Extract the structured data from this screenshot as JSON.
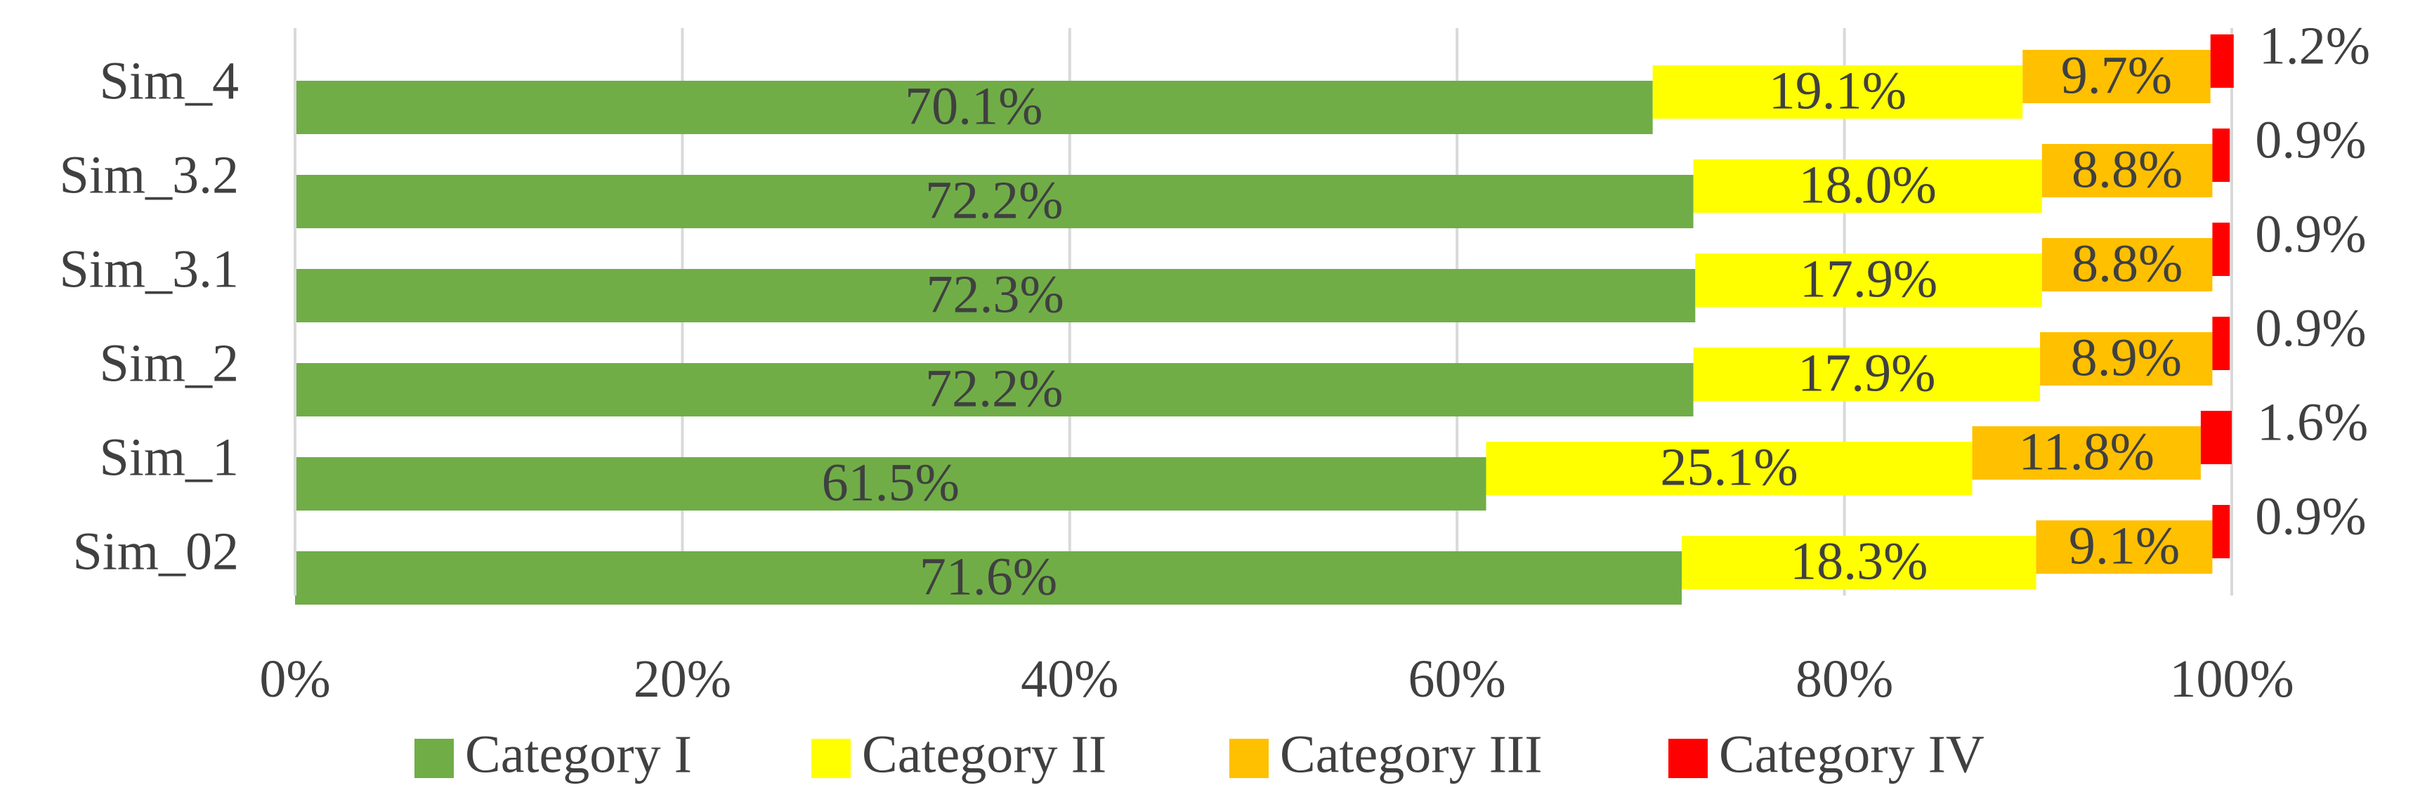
{
  "chart_data": {
    "type": "bar",
    "orientation": "horizontal",
    "stacked": true,
    "categories": [
      "Sim_4",
      "Sim_3.2",
      "Sim_3.1",
      "Sim_2",
      "Sim_1",
      "Sim_02"
    ],
    "series": [
      {
        "name": "Category I",
        "color": "#70AD47",
        "values": [
          70.1,
          72.2,
          72.3,
          72.2,
          61.5,
          71.6
        ],
        "labels": [
          "70.1%",
          "72.2%",
          "72.3%",
          "72.2%",
          "61.5%",
          "71.6%"
        ]
      },
      {
        "name": "Category II",
        "color": "#FFFF00",
        "values": [
          19.1,
          18.0,
          17.9,
          17.9,
          25.1,
          18.3
        ],
        "labels": [
          "19.1%",
          "18.0%",
          "17.9%",
          "17.9%",
          "25.1%",
          "18.3%"
        ]
      },
      {
        "name": "Category III",
        "color": "#FFC000",
        "values": [
          9.7,
          8.8,
          8.8,
          8.9,
          11.8,
          9.1
        ],
        "labels": [
          "9.7%",
          "8.8%",
          "8.8%",
          "8.9%",
          "11.8%",
          "9.1%"
        ]
      },
      {
        "name": "Category IV",
        "color": "#FF0000",
        "values": [
          1.2,
          0.9,
          0.9,
          0.9,
          1.6,
          0.9
        ],
        "labels": [
          "1.2%",
          "0.9%",
          "0.9%",
          "0.9%",
          "1.6%",
          "0.9%"
        ]
      }
    ],
    "xlim": [
      0,
      100
    ],
    "xticks": [
      0,
      20,
      40,
      60,
      80,
      100
    ],
    "xtick_labels": [
      "0%",
      "20%",
      "40%",
      "60%",
      "80%",
      "100%"
    ],
    "grid": "vertical",
    "legend": "bottom",
    "title": "",
    "xlabel": "",
    "ylabel": ""
  }
}
